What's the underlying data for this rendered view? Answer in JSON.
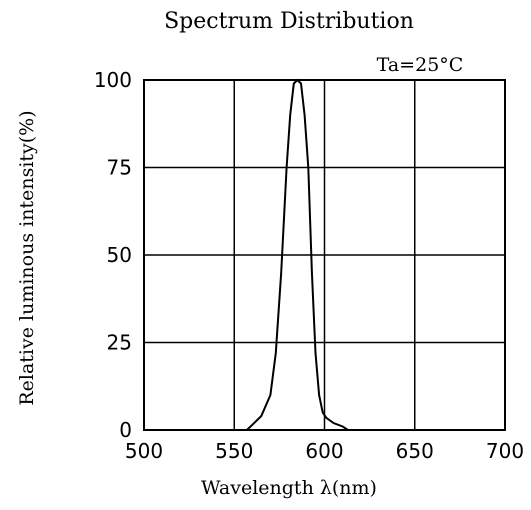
{
  "chart_data": {
    "type": "line",
    "title": "Spectrum Distribution",
    "xlabel": "Wavelength λ(nm)",
    "ylabel": "Relative luminous intensity(%)",
    "annotation": "Ta=25°C",
    "xlim": [
      500,
      700
    ],
    "ylim": [
      0,
      100
    ],
    "x_ticks": [
      "500",
      "550",
      "600",
      "650",
      "700"
    ],
    "y_ticks": [
      "0",
      "25",
      "50",
      "75",
      "100"
    ],
    "grid": true,
    "legend": "none",
    "series": [
      {
        "x": [
          557,
          560,
          565,
          570,
          573,
          576,
          579,
          581,
          583,
          585,
          587,
          589,
          591,
          593,
          595,
          597,
          599,
          601,
          605,
          610,
          613
        ],
        "y": [
          0,
          1.5,
          4,
          10,
          22,
          45,
          75,
          90,
          99,
          100,
          99,
          90,
          75,
          45,
          22,
          10,
          5,
          3.5,
          2,
          1,
          0
        ]
      }
    ]
  }
}
